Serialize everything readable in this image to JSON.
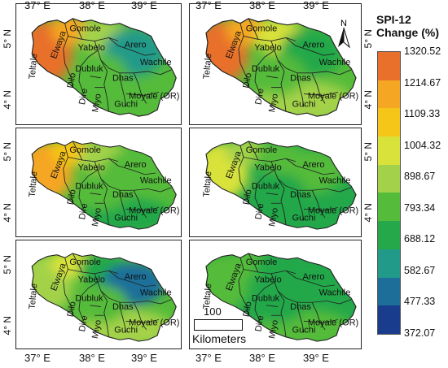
{
  "map": {
    "lon_labels": [
      "37° E",
      "38° E",
      "39° E"
    ],
    "lat_labels": [
      "5° N",
      "4° N"
    ],
    "districts": [
      "Teltale",
      "Elwaya",
      "Gomole",
      "Yabelo",
      "Arero",
      "Dubluk",
      "Dhas",
      "Wachile",
      "Dilo",
      "Dire",
      "Miyo",
      "Guchi",
      "Moyale (OR)"
    ],
    "north_label": "N"
  },
  "legend": {
    "title_line1": "SPI-12",
    "title_line2": "Change (%)",
    "breaks": [
      "1320.52",
      "1214.67",
      "1109.33",
      "1004.32",
      "898.67",
      "793.34",
      "688.12",
      "582.67",
      "477.33",
      "372.07"
    ],
    "colors": [
      "#e8702a",
      "#f5a623",
      "#f5c518",
      "#d8e23a",
      "#a3d24a",
      "#55bb3a",
      "#24a84a",
      "#229a8a",
      "#1d6f9a",
      "#1a3c8c"
    ]
  },
  "scale": {
    "value": "100",
    "unit": "Kilometers"
  }
}
